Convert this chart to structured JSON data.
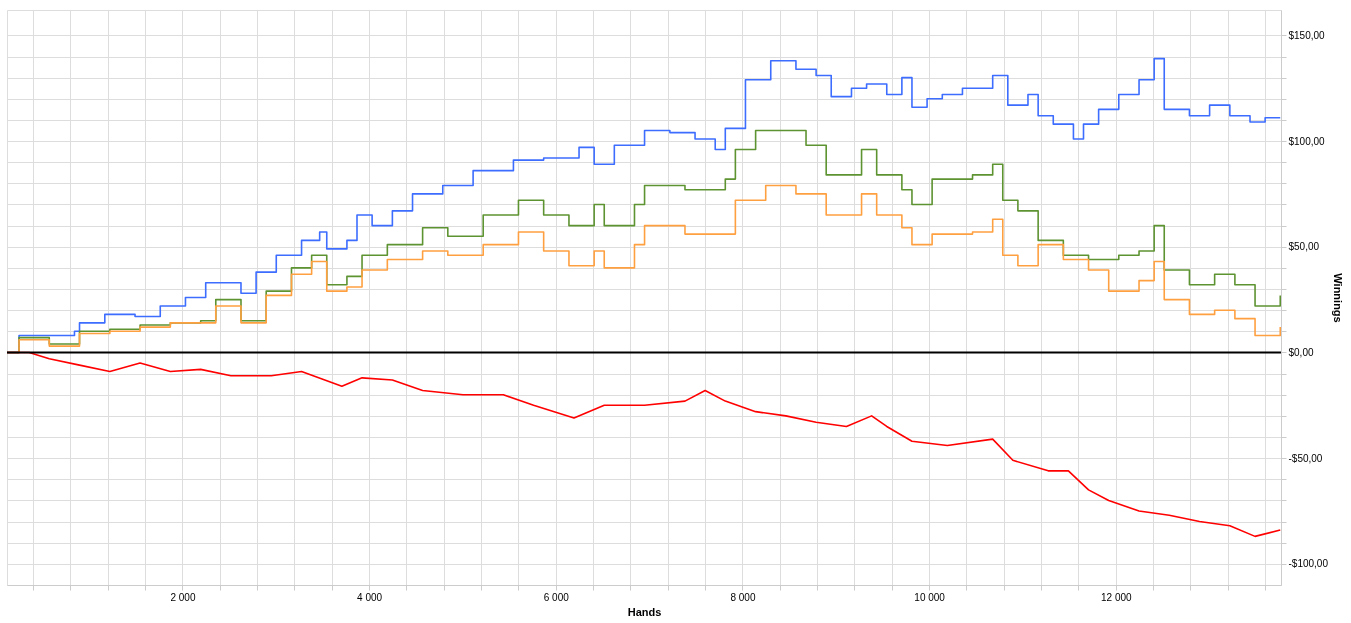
{
  "chart_data": {
    "type": "step",
    "xlabel": "Hands",
    "ylabel": "Winnings",
    "xlim": [
      120,
      13770
    ],
    "ylim": [
      -110,
      162
    ],
    "xticks": [
      {
        "value": 400,
        "label": null
      },
      {
        "value": 800,
        "label": null
      },
      {
        "value": 1200,
        "label": null
      },
      {
        "value": 1600,
        "label": null
      },
      {
        "value": 2000,
        "label": "2 000"
      },
      {
        "value": 2400,
        "label": null
      },
      {
        "value": 2800,
        "label": null
      },
      {
        "value": 3200,
        "label": null
      },
      {
        "value": 3600,
        "label": null
      },
      {
        "value": 4000,
        "label": "4 000"
      },
      {
        "value": 4400,
        "label": null
      },
      {
        "value": 4800,
        "label": null
      },
      {
        "value": 5200,
        "label": null
      },
      {
        "value": 5600,
        "label": null
      },
      {
        "value": 6000,
        "label": "6 000"
      },
      {
        "value": 6400,
        "label": null
      },
      {
        "value": 6800,
        "label": null
      },
      {
        "value": 7200,
        "label": null
      },
      {
        "value": 7600,
        "label": null
      },
      {
        "value": 8000,
        "label": "8 000"
      },
      {
        "value": 8400,
        "label": null
      },
      {
        "value": 8800,
        "label": null
      },
      {
        "value": 9200,
        "label": null
      },
      {
        "value": 9600,
        "label": null
      },
      {
        "value": 10000,
        "label": "10 000"
      },
      {
        "value": 10400,
        "label": null
      },
      {
        "value": 10800,
        "label": null
      },
      {
        "value": 11200,
        "label": null
      },
      {
        "value": 11600,
        "label": null
      },
      {
        "value": 12000,
        "label": "12 000"
      },
      {
        "value": 12400,
        "label": null
      },
      {
        "value": 12800,
        "label": null
      },
      {
        "value": 13200,
        "label": null
      },
      {
        "value": 13600,
        "label": null
      }
    ],
    "yticks": [
      {
        "value": -100,
        "label": "-$100,00"
      },
      {
        "value": -90,
        "label": null
      },
      {
        "value": -80,
        "label": null
      },
      {
        "value": -70,
        "label": null
      },
      {
        "value": -60,
        "label": null
      },
      {
        "value": -50,
        "label": "-$50,00"
      },
      {
        "value": -40,
        "label": null
      },
      {
        "value": -30,
        "label": null
      },
      {
        "value": -20,
        "label": null
      },
      {
        "value": -10,
        "label": null
      },
      {
        "value": 0,
        "label": "$0,00"
      },
      {
        "value": 10,
        "label": null
      },
      {
        "value": 20,
        "label": null
      },
      {
        "value": 30,
        "label": null
      },
      {
        "value": 40,
        "label": null
      },
      {
        "value": 50,
        "label": "$50,00"
      },
      {
        "value": 60,
        "label": null
      },
      {
        "value": 70,
        "label": null
      },
      {
        "value": 80,
        "label": null
      },
      {
        "value": 90,
        "label": null
      },
      {
        "value": 100,
        "label": "$100,00"
      },
      {
        "value": 110,
        "label": null
      },
      {
        "value": 120,
        "label": null
      },
      {
        "value": 130,
        "label": null
      },
      {
        "value": 140,
        "label": null
      },
      {
        "value": 150,
        "label": "$150,00"
      }
    ],
    "grid": true,
    "ref_lines": [
      {
        "axis": "y",
        "value": 0,
        "color": "#000000"
      }
    ],
    "series": [
      {
        "color": "#3d6dff",
        "x": [
          120,
          249,
          573,
          843,
          897,
          1168,
          1492,
          1762,
          2032,
          2249,
          2627,
          2789,
          3005,
          3276,
          3470,
          3546,
          3762,
          3870,
          4032,
          4249,
          4465,
          4789,
          5114,
          5546,
          5870,
          6249,
          6411,
          6627,
          6951,
          7222,
          7492,
          7708,
          7816,
          8032,
          8303,
          8573,
          8789,
          8951,
          9168,
          9330,
          9546,
          9708,
          9816,
          9978,
          10141,
          10357,
          10681,
          10843,
          11059,
          11168,
          11330,
          11546,
          11654,
          11816,
          12032,
          12249,
          12411,
          12519,
          12789,
          13005,
          13222,
          13438,
          13600,
          13762
        ],
        "values": [
          0,
          8,
          8,
          10,
          14,
          18,
          17,
          22,
          26,
          33,
          28,
          38,
          46,
          53,
          57,
          49,
          53,
          65,
          60,
          67,
          75,
          79,
          86,
          91,
          92,
          97,
          89,
          98,
          105,
          104,
          101,
          96,
          106,
          129,
          138,
          134,
          131,
          121,
          125,
          127,
          122,
          130,
          116,
          120,
          122,
          125,
          131,
          117,
          122,
          112,
          108,
          101,
          108,
          115,
          122,
          129,
          139,
          115,
          112,
          117,
          112,
          109,
          111,
          111
        ]
      },
      {
        "color": "#5e9332",
        "x": [
          120,
          249,
          573,
          897,
          1222,
          1546,
          1870,
          2195,
          2357,
          2627,
          2897,
          3168,
          3384,
          3546,
          3762,
          3924,
          4195,
          4573,
          4843,
          5222,
          5600,
          5870,
          6141,
          6411,
          6519,
          6843,
          6951,
          7384,
          7816,
          7924,
          8141,
          8465,
          8681,
          8897,
          9276,
          9438,
          9708,
          9816,
          10032,
          10465,
          10681,
          10789,
          10951,
          11168,
          11438,
          11708,
          12032,
          12249,
          12411,
          12519,
          12789,
          13059,
          13276,
          13492,
          13762
        ],
        "values": [
          0,
          7,
          4,
          10,
          11,
          13,
          14,
          15,
          25,
          15,
          29,
          40,
          46,
          32,
          36,
          46,
          51,
          59,
          55,
          65,
          72,
          65,
          60,
          70,
          60,
          70,
          79,
          77,
          82,
          96,
          105,
          105,
          98,
          84,
          96,
          84,
          77,
          70,
          82,
          84,
          89,
          72,
          67,
          53,
          46,
          44,
          46,
          48,
          60,
          39,
          32,
          37,
          32,
          22,
          27
        ]
      },
      {
        "color": "#ffa040",
        "x": [
          120,
          249,
          573,
          897,
          1222,
          1546,
          1870,
          2195,
          2357,
          2627,
          2897,
          3168,
          3384,
          3546,
          3762,
          3924,
          4195,
          4573,
          4843,
          5222,
          5600,
          5870,
          6141,
          6411,
          6519,
          6843,
          6951,
          7384,
          7816,
          7924,
          8249,
          8573,
          8897,
          9276,
          9438,
          9708,
          9816,
          10032,
          10465,
          10681,
          10789,
          10951,
          11168,
          11438,
          11708,
          11924,
          12249,
          12411,
          12519,
          12789,
          13059,
          13276,
          13492,
          13762
        ],
        "values": [
          0,
          6,
          3,
          9,
          10,
          12,
          14,
          14,
          22,
          14,
          27,
          37,
          43,
          29,
          31,
          39,
          44,
          48,
          46,
          51,
          57,
          48,
          41,
          48,
          40,
          51,
          60,
          56,
          56,
          72,
          79,
          75,
          65,
          75,
          65,
          59,
          51,
          56,
          57,
          63,
          46,
          41,
          51,
          44,
          39,
          29,
          34,
          43,
          25,
          18,
          20,
          16,
          8,
          12
        ]
      },
      {
        "color": "#ff0000",
        "type": "line",
        "x": [
          120,
          357,
          573,
          897,
          1222,
          1546,
          1870,
          2195,
          2519,
          2951,
          3276,
          3708,
          3924,
          4249,
          4573,
          5005,
          5438,
          5762,
          6195,
          6519,
          6951,
          7384,
          7600,
          7816,
          8141,
          8465,
          8789,
          9114,
          9384,
          9546,
          9816,
          10195,
          10681,
          10897,
          11276,
          11492,
          11708,
          11924,
          12249,
          12573,
          12897,
          13222,
          13492,
          13762
        ],
        "values": [
          0,
          0,
          -3,
          -6,
          -9,
          -5,
          -9,
          -8,
          -11,
          -11,
          -9,
          -16,
          -12,
          -13,
          -18,
          -20,
          -20,
          -25,
          -31,
          -25,
          -25,
          -23,
          -18,
          -23,
          -28,
          -30,
          -33,
          -35,
          -30,
          -35,
          -42,
          -44,
          -41,
          -51,
          -56,
          -56,
          -65,
          -70,
          -75,
          -77,
          -80,
          -82,
          -87,
          -84
        ]
      }
    ]
  }
}
